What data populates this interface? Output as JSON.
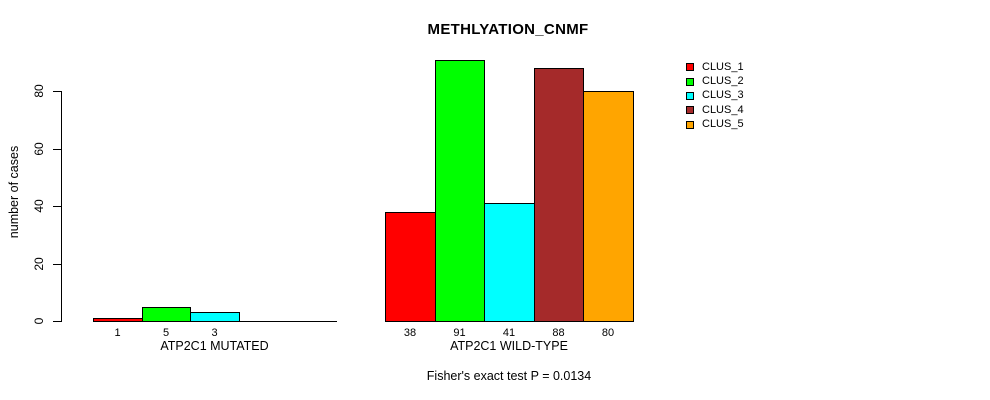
{
  "title": "METHLYATION_CNMF",
  "y_axis": {
    "label": "number of cases",
    "ticks": [
      0,
      20,
      40,
      60,
      80
    ]
  },
  "footer": "Fisher's exact test P = 0.0134",
  "legend": [
    {
      "label": "CLUS_1",
      "color": "#ff0000"
    },
    {
      "label": "CLUS_2",
      "color": "#00ff00"
    },
    {
      "label": "CLUS_3",
      "color": "#00ffff"
    },
    {
      "label": "CLUS_4",
      "color": "#a52a2a"
    },
    {
      "label": "CLUS_5",
      "color": "#ffa500"
    }
  ],
  "chart_data": {
    "type": "bar",
    "title": "METHLYATION_CNMF",
    "ylabel": "number of cases",
    "xlabel": "",
    "ylim": [
      0,
      93
    ],
    "yticks": [
      0,
      20,
      40,
      60,
      80
    ],
    "grid": false,
    "legend_position": "right",
    "series": [
      "CLUS_1",
      "CLUS_2",
      "CLUS_3",
      "CLUS_4",
      "CLUS_5"
    ],
    "colors": [
      "#ff0000",
      "#00ff00",
      "#00ffff",
      "#a52a2a",
      "#ffa500"
    ],
    "groups": [
      {
        "label": "ATP2C1 MUTATED",
        "values": [
          1,
          5,
          3,
          0,
          0
        ],
        "bar_labels": [
          "1",
          "5",
          "3",
          "",
          ""
        ]
      },
      {
        "label": "ATP2C1 WILD-TYPE",
        "values": [
          38,
          91,
          41,
          88,
          80
        ],
        "bar_labels": [
          "38",
          "91",
          "41",
          "88",
          "80"
        ]
      }
    ],
    "annotation": "Fisher's exact test P = 0.0134"
  }
}
